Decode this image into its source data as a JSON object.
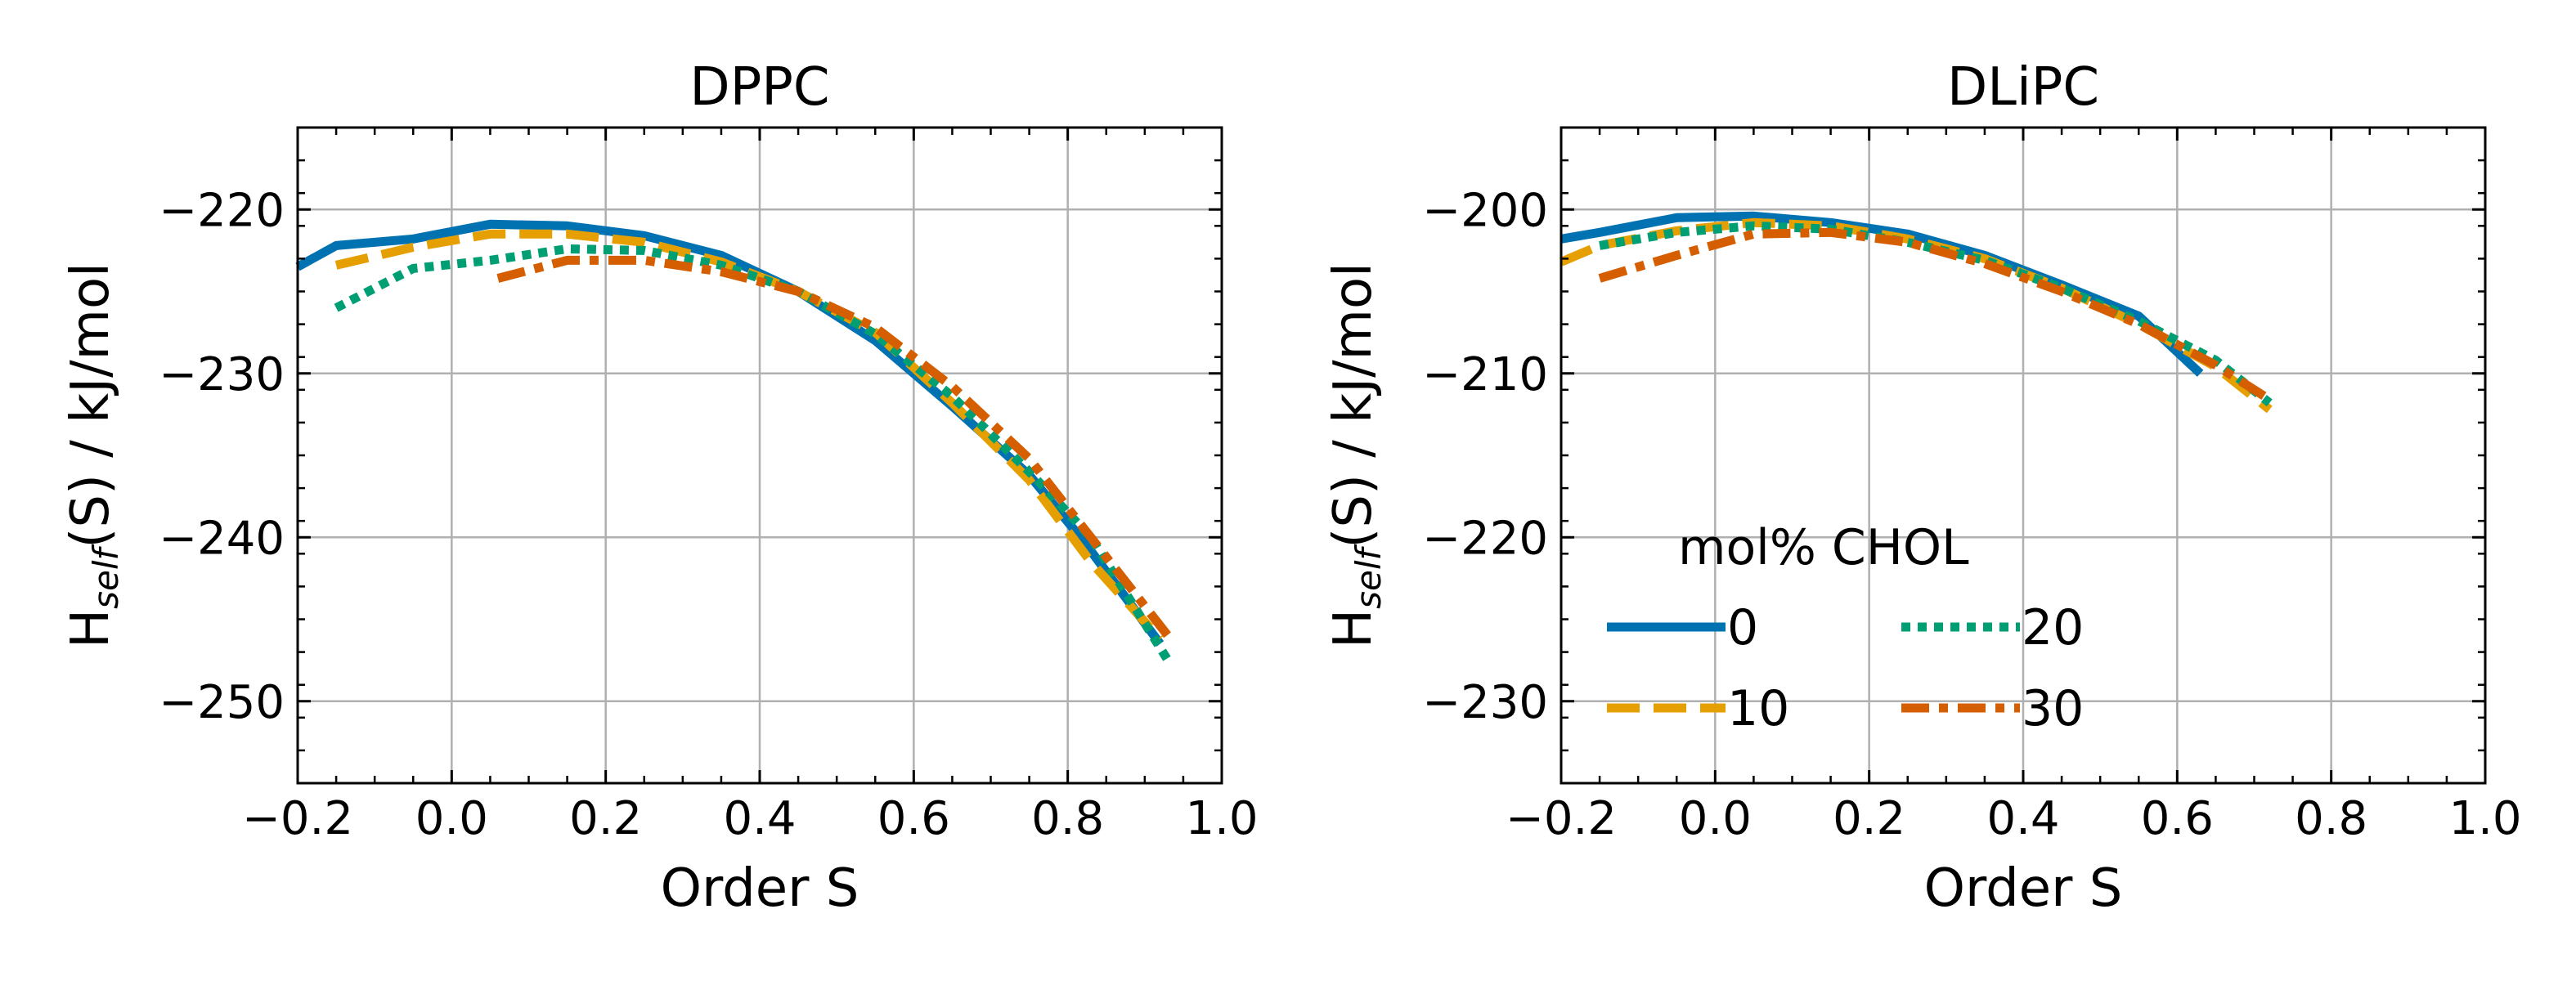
{
  "chart_data": [
    {
      "type": "line",
      "title": "DPPC",
      "xlabel": "Order S",
      "ylabel_main": "H",
      "ylabel_sub": "self",
      "ylabel_rest": "(S) / kJ/mol",
      "xlim": [
        -0.2,
        1.0
      ],
      "ylim": [
        -255,
        -215
      ],
      "xticks": [
        -0.2,
        0.0,
        0.2,
        0.4,
        0.6,
        0.8,
        1.0
      ],
      "xtick_labels": [
        "−0.2",
        "0.0",
        "0.2",
        "0.4",
        "0.6",
        "0.8",
        "1.0"
      ],
      "yticks": [
        -220,
        -230,
        -240,
        -250
      ],
      "ytick_labels": [
        "−220",
        "−230",
        "−240",
        "−250"
      ],
      "grid": true,
      "series": [
        {
          "name": "0",
          "color": "#0072B2",
          "dash": "solid",
          "x": [
            -0.2,
            -0.15,
            -0.05,
            0.05,
            0.15,
            0.25,
            0.35,
            0.45,
            0.55,
            0.65,
            0.75,
            0.82,
            0.92
          ],
          "y": [
            -223.5,
            -222.2,
            -221.8,
            -220.9,
            -221.0,
            -221.6,
            -222.8,
            -225.0,
            -228.0,
            -232.0,
            -236.2,
            -240.2,
            -246.5
          ]
        },
        {
          "name": "10",
          "color": "#E69F00",
          "dash": "dashed",
          "x": [
            -0.15,
            -0.05,
            0.05,
            0.15,
            0.25,
            0.35,
            0.45,
            0.55,
            0.65,
            0.75,
            0.83,
            0.92
          ],
          "y": [
            -223.4,
            -222.3,
            -221.5,
            -221.5,
            -222.0,
            -223.2,
            -225.0,
            -227.5,
            -231.8,
            -236.5,
            -241.5,
            -246.2
          ]
        },
        {
          "name": "20",
          "color": "#009E73",
          "dash": "dotted",
          "x": [
            -0.15,
            -0.05,
            0.05,
            0.15,
            0.25,
            0.35,
            0.45,
            0.55,
            0.65,
            0.75,
            0.83,
            0.93
          ],
          "y": [
            -226.0,
            -223.6,
            -223.1,
            -222.4,
            -222.5,
            -223.4,
            -225.0,
            -227.6,
            -231.4,
            -236.0,
            -240.0,
            -247.5
          ]
        },
        {
          "name": "30",
          "color": "#D55E00",
          "dash": "dashdot",
          "x": [
            0.06,
            0.15,
            0.25,
            0.35,
            0.45,
            0.55,
            0.65,
            0.75,
            0.83,
            0.93
          ],
          "y": [
            -224.2,
            -223.1,
            -223.1,
            -223.8,
            -225.0,
            -227.2,
            -230.8,
            -235.2,
            -240.0,
            -246.0
          ]
        }
      ]
    },
    {
      "type": "line",
      "title": "DLiPC",
      "xlabel": "Order S",
      "ylabel_main": "H",
      "ylabel_sub": "self",
      "ylabel_rest": "(S) / kJ/mol",
      "xlim": [
        -0.2,
        1.0
      ],
      "ylim": [
        -235,
        -195
      ],
      "xticks": [
        -0.2,
        0.0,
        0.2,
        0.4,
        0.6,
        0.8,
        1.0
      ],
      "xtick_labels": [
        "−0.2",
        "0.0",
        "0.2",
        "0.4",
        "0.6",
        "0.8",
        "1.0"
      ],
      "yticks": [
        -200,
        -210,
        -220,
        -230
      ],
      "ytick_labels": [
        "−200",
        "−210",
        "−220",
        "−230"
      ],
      "grid": true,
      "legend": {
        "title": "mol% CHOL",
        "placement": "lower-left"
      },
      "series": [
        {
          "name": "0",
          "color": "#0072B2",
          "dash": "solid",
          "x": [
            -0.2,
            -0.15,
            -0.05,
            0.05,
            0.15,
            0.25,
            0.35,
            0.45,
            0.55,
            0.63
          ],
          "y": [
            -201.8,
            -201.4,
            -200.5,
            -200.4,
            -200.8,
            -201.5,
            -202.8,
            -204.6,
            -206.5,
            -210.0
          ]
        },
        {
          "name": "10",
          "color": "#E69F00",
          "dash": "dashed",
          "x": [
            -0.2,
            -0.15,
            -0.05,
            0.05,
            0.15,
            0.25,
            0.35,
            0.45,
            0.55,
            0.65,
            0.72
          ],
          "y": [
            -203.2,
            -202.2,
            -201.3,
            -200.8,
            -201.0,
            -201.8,
            -203.0,
            -204.8,
            -207.0,
            -209.6,
            -212.2
          ]
        },
        {
          "name": "20",
          "color": "#009E73",
          "dash": "dotted",
          "x": [
            -0.15,
            -0.05,
            0.05,
            0.15,
            0.25,
            0.35,
            0.45,
            0.55,
            0.65,
            0.72
          ],
          "y": [
            -202.2,
            -201.4,
            -201.0,
            -201.2,
            -202.0,
            -203.1,
            -204.8,
            -206.8,
            -209.2,
            -211.8
          ]
        },
        {
          "name": "30",
          "color": "#D55E00",
          "dash": "dashdot",
          "x": [
            -0.15,
            -0.05,
            0.05,
            0.15,
            0.25,
            0.35,
            0.45,
            0.55,
            0.65,
            0.72
          ],
          "y": [
            -204.2,
            -202.8,
            -201.5,
            -201.4,
            -202.0,
            -203.3,
            -205.0,
            -207.0,
            -209.5,
            -211.6
          ]
        }
      ]
    }
  ]
}
